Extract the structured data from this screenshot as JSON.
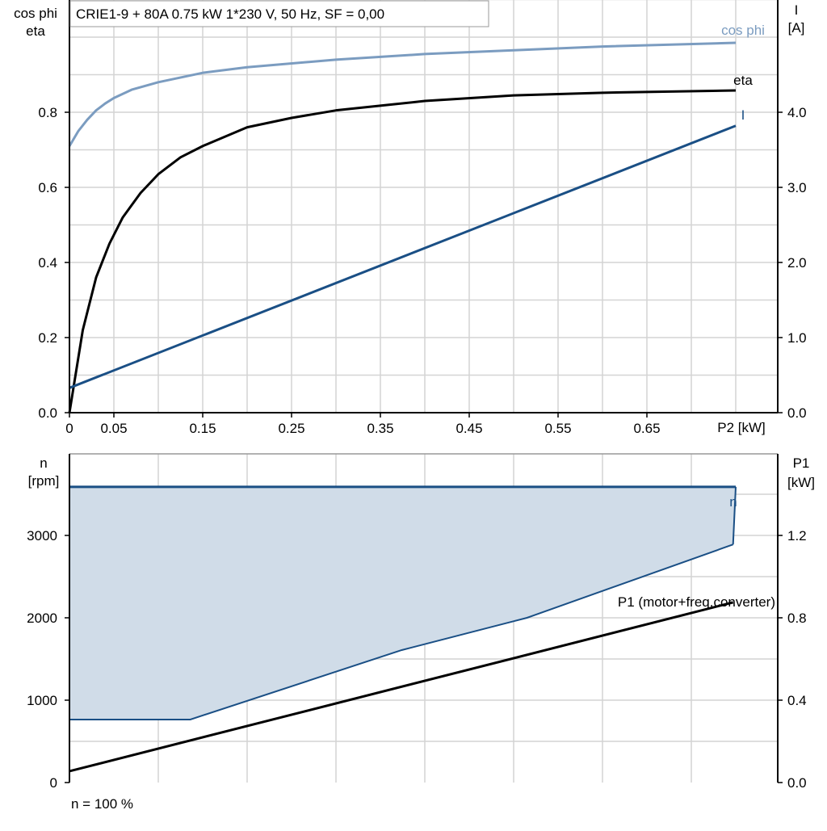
{
  "chart_data": [
    {
      "type": "line",
      "title": "CRIE1-9 + 80A   0.75 kW   1*230 V, 50 Hz, SF = 0,00",
      "xlabel": "P2 [kW]",
      "ylabel_left": [
        "cos phi",
        "eta"
      ],
      "ylabel_right": [
        "I",
        "[A]"
      ],
      "xlim": [
        0,
        0.8
      ],
      "ylim_left": [
        0,
        1.1
      ],
      "ylim_right": [
        0,
        5.5
      ],
      "x_ticks": [
        "0",
        "0.05",
        "0.15",
        "0.25",
        "0.35",
        "0.45",
        "0.55",
        "0.65"
      ],
      "y_ticks_left": [
        "0.0",
        "0.2",
        "0.4",
        "0.6",
        "0.8"
      ],
      "y_ticks_right": [
        "0.0",
        "1.0",
        "2.0",
        "3.0",
        "4.0"
      ],
      "grid": true,
      "series": [
        {
          "name": "cos phi",
          "axis": "left",
          "color": "#7b9cc0",
          "x": [
            0,
            0.01,
            0.02,
            0.03,
            0.04,
            0.05,
            0.07,
            0.1,
            0.15,
            0.2,
            0.3,
            0.4,
            0.5,
            0.6,
            0.75
          ],
          "y": [
            0.71,
            0.75,
            0.78,
            0.805,
            0.823,
            0.838,
            0.86,
            0.88,
            0.905,
            0.92,
            0.94,
            0.955,
            0.965,
            0.975,
            0.985
          ]
        },
        {
          "name": "eta",
          "axis": "left",
          "color": "#000000",
          "x": [
            0,
            0.015,
            0.03,
            0.045,
            0.06,
            0.08,
            0.1,
            0.125,
            0.15,
            0.2,
            0.25,
            0.3,
            0.4,
            0.5,
            0.6,
            0.75
          ],
          "y": [
            0,
            0.22,
            0.36,
            0.45,
            0.52,
            0.585,
            0.635,
            0.68,
            0.71,
            0.76,
            0.785,
            0.805,
            0.83,
            0.845,
            0.852,
            0.858
          ]
        },
        {
          "name": "I",
          "axis": "right",
          "color": "#1a4f85",
          "x": [
            0,
            0.75
          ],
          "y": [
            0.33,
            3.82
          ]
        }
      ]
    },
    {
      "type": "area",
      "xlabel": "",
      "footer": "n = 100 %",
      "ylabel_left": [
        "n",
        "[rpm]"
      ],
      "ylabel_right": [
        "P1",
        "[kW]"
      ],
      "xlim": [
        0,
        0.8
      ],
      "ylim_left": [
        0,
        4000
      ],
      "ylim_right": [
        0,
        1.6
      ],
      "y_ticks_left": [
        "0",
        "1000",
        "2000",
        "3000"
      ],
      "y_ticks_right": [
        "0.0",
        "0.4",
        "0.8",
        "1.2"
      ],
      "grid": true,
      "series": [
        {
          "name": "n",
          "axis": "left",
          "color": "#1a4f85",
          "fill": "#d0dce8",
          "x": [
            0,
            0.75
          ],
          "y": [
            3590,
            3590
          ],
          "lower_x": [
            0,
            0.136,
            0.374,
            0.515,
            0.747
          ],
          "lower_y": [
            765,
            765,
            1608,
            2000,
            2890
          ]
        },
        {
          "name": "P1 (motor+freq.converter)",
          "axis": "right",
          "color": "#000000",
          "x": [
            0,
            0.747
          ],
          "y": [
            0.055,
            0.875
          ]
        }
      ]
    }
  ]
}
